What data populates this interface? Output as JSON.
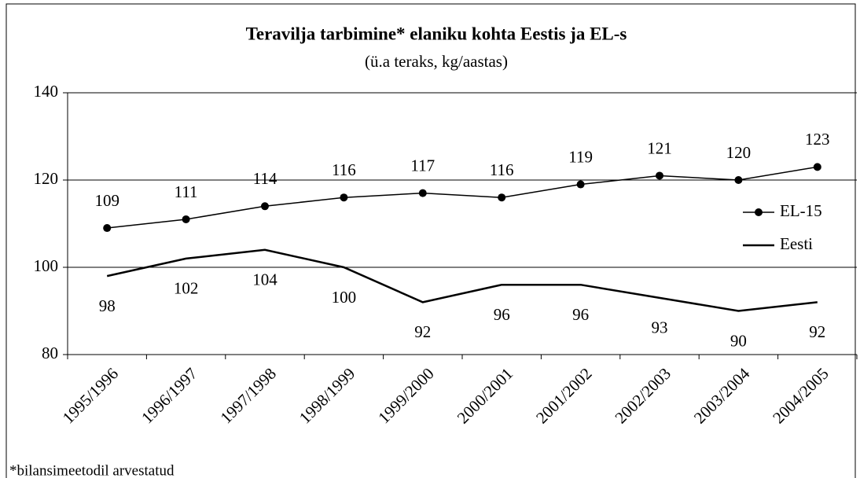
{
  "chart_data": {
    "type": "line",
    "title": "Teravilja tarbimine* elaniku kohta Eestis ja EL-s",
    "subtitle": "(ü.a teraks, kg/aastas)",
    "footnote": "*bilansimeetodil arvestatud",
    "categories": [
      "1995/1996",
      "1996/1997",
      "1997/1998",
      "1998/1999",
      "1999/2000",
      "2000/2001",
      "2001/2002",
      "2002/2003",
      "2003/2004",
      "2004/2005"
    ],
    "series": [
      {
        "name": "EL-15",
        "color": "#000000",
        "marker": true,
        "label_position": "above",
        "values": [
          109,
          111,
          114,
          116,
          117,
          116,
          119,
          121,
          120,
          123
        ]
      },
      {
        "name": "Eesti",
        "color": "#000000",
        "marker": false,
        "label_position": "below",
        "values": [
          98,
          102,
          104,
          100,
          92,
          96,
          96,
          93,
          90,
          92
        ]
      }
    ],
    "ylim": [
      80,
      140
    ],
    "yticks": [
      80,
      100,
      120,
      140
    ],
    "grid": true,
    "legend": "right"
  }
}
